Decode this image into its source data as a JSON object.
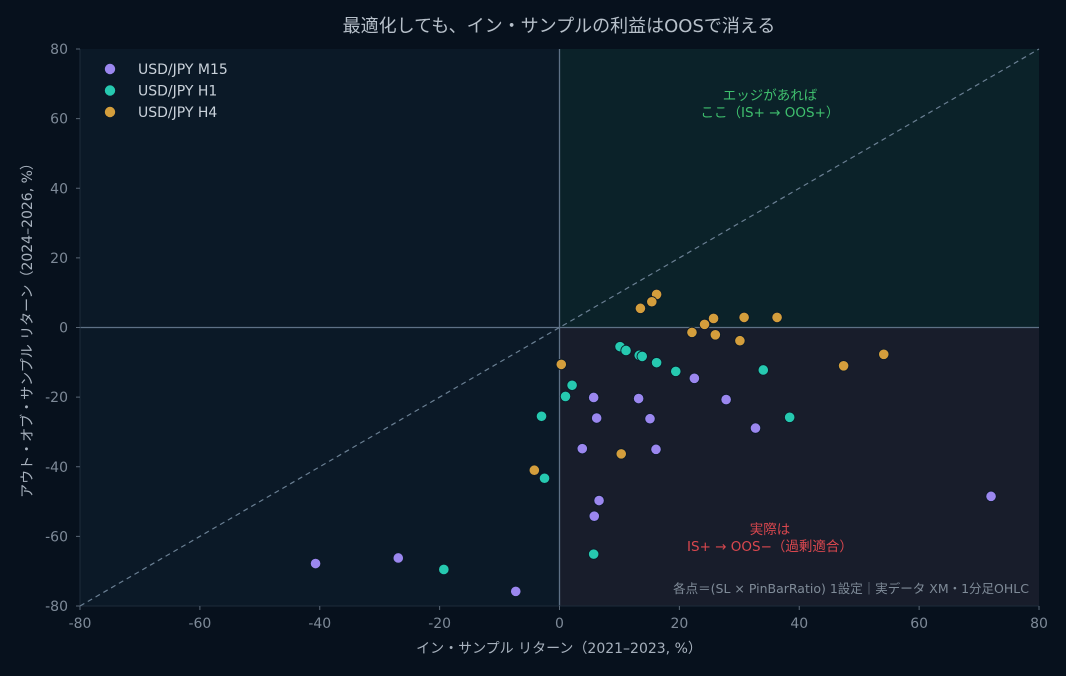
{
  "chart_data": {
    "type": "scatter",
    "title": "最適化しても、イン・サンプルの利益はOOSで消える",
    "xlabel": "イン・サンプル リターン（2021–2023, %）",
    "ylabel": "アウト・オブ・サンプル リターン（2024–2026, %）",
    "xlim": [
      -80,
      80
    ],
    "ylim": [
      -80,
      80
    ],
    "xticks": [
      -80,
      -60,
      -40,
      -20,
      0,
      20,
      40,
      60,
      80
    ],
    "yticks": [
      -80,
      -60,
      -40,
      -20,
      0,
      20,
      40,
      60,
      80
    ],
    "grid": false,
    "legend_position": "top-left",
    "reference_line": "y = x (dashed)",
    "series": [
      {
        "name": "USD/JPY M15",
        "color": "#9b87ef",
        "points": [
          [
            5.7,
            -20.1
          ],
          [
            6.2,
            -26.0
          ],
          [
            3.8,
            -34.8
          ],
          [
            13.2,
            -20.4
          ],
          [
            15.1,
            -26.2
          ],
          [
            16.1,
            -35.0
          ],
          [
            22.5,
            -14.6
          ],
          [
            27.8,
            -20.7
          ],
          [
            32.7,
            -28.9
          ],
          [
            6.6,
            -49.7
          ],
          [
            5.8,
            -54.2
          ],
          [
            72.0,
            -48.5
          ],
          [
            -40.7,
            -67.8
          ],
          [
            -26.9,
            -66.2
          ],
          [
            -7.3,
            -75.8
          ]
        ]
      },
      {
        "name": "USD/JPY H1",
        "color": "#26c9b0",
        "points": [
          [
            10.1,
            -5.5
          ],
          [
            11.1,
            -6.6
          ],
          [
            13.3,
            -8.0
          ],
          [
            13.8,
            -8.3
          ],
          [
            16.2,
            -10.1
          ],
          [
            19.4,
            -12.6
          ],
          [
            34.0,
            -12.2
          ],
          [
            2.1,
            -16.6
          ],
          [
            1.0,
            -19.8
          ],
          [
            -3.0,
            -25.5
          ],
          [
            38.4,
            -25.8
          ],
          [
            -2.5,
            -43.3
          ],
          [
            5.7,
            -65.1
          ],
          [
            -19.3,
            -69.5
          ]
        ]
      },
      {
        "name": "USD/JPY H4",
        "color": "#d49e3c",
        "points": [
          [
            16.2,
            9.5
          ],
          [
            15.4,
            7.4
          ],
          [
            13.5,
            5.5
          ],
          [
            25.7,
            2.6
          ],
          [
            24.2,
            0.9
          ],
          [
            30.8,
            2.9
          ],
          [
            36.3,
            2.9
          ],
          [
            22.1,
            -1.4
          ],
          [
            26.0,
            -2.1
          ],
          [
            30.1,
            -3.8
          ],
          [
            0.3,
            -10.6
          ],
          [
            47.4,
            -11.0
          ],
          [
            54.1,
            -7.7
          ],
          [
            10.3,
            -36.3
          ],
          [
            -4.2,
            -41.0
          ]
        ]
      }
    ],
    "annotations": {
      "edge": {
        "lines": [
          "エッジがあれば",
          "ここ（IS+ → OOS+）"
        ],
        "color": "#3fbf6e"
      },
      "reality": {
        "lines": [
          "実際は",
          "IS+ → OOS−（過剰適合）"
        ],
        "color": "#d9474e"
      },
      "footnote": "各点＝(SL × PinBarRatio) 1設定｜実データ XM・1分足OHLC"
    },
    "colors": {
      "background": "#07111d",
      "plot_background": "#0b1927",
      "quadrant_upper_right": "#0b2229",
      "quadrant_lower_right": "#181d2b",
      "axis_line": "#5e7186",
      "diagonal": "#6a7f93"
    }
  }
}
